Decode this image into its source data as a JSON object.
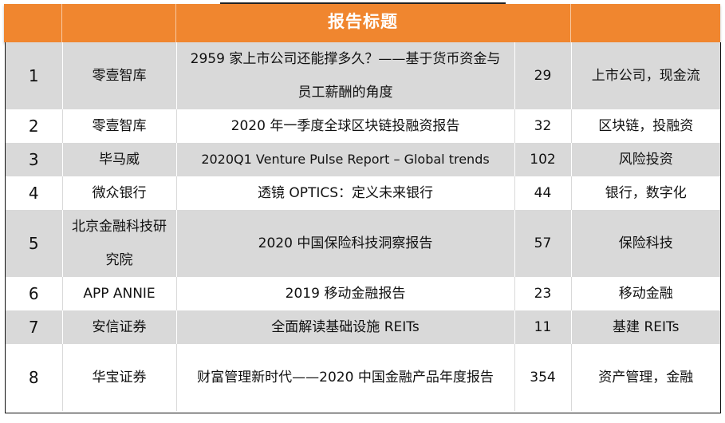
{
  "header": {
    "title": "报告标题"
  },
  "colors": {
    "header_bg": "#f0862f",
    "shade_row": "#d9d9d9"
  },
  "rows": [
    {
      "no": "1",
      "org": "零壹智库",
      "title": "2959 家上市公司还能撑多久？——基于货币资金与员工薪酬的角度",
      "pages": "29",
      "tags": "上市公司，现金流"
    },
    {
      "no": "2",
      "org": "零壹智库",
      "title": "2020 年一季度全球区块链投融资报告",
      "pages": "32",
      "tags": "区块链，投融资"
    },
    {
      "no": "3",
      "org": "毕马威",
      "title": "2020Q1 Venture Pulse Report – Global trends",
      "pages": "102",
      "tags": "风险投资"
    },
    {
      "no": "4",
      "org": "微众银行",
      "title": "透镜 OPTICS：定义未来银行",
      "pages": "44",
      "tags": "银行，数字化"
    },
    {
      "no": "5",
      "org": "北京金融科技研究院",
      "title": "2020 中国保险科技洞察报告",
      "pages": "57",
      "tags": "保险科技"
    },
    {
      "no": "6",
      "org": "APP ANNIE",
      "title": "2019 移动金融报告",
      "pages": "23",
      "tags": "移动金融"
    },
    {
      "no": "7",
      "org": "安信证券",
      "title": "全面解读基础设施 REITs",
      "pages": "11",
      "tags": "基建 REITs"
    },
    {
      "no": "8",
      "org": "华宝证券",
      "title": "财富管理新时代——2020 中国金融产品年度报告",
      "pages": "354",
      "tags": "资产管理，金融"
    }
  ]
}
